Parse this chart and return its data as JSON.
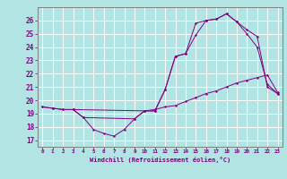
{
  "title": "",
  "xlabel": "Windchill (Refroidissement éolien,°C)",
  "background_color": "#b2e4e4",
  "grid_color": "#ffffff",
  "line_color": "#800080",
  "spine_color": "#808080",
  "xlim": [
    -0.5,
    23.5
  ],
  "ylim": [
    16.5,
    27.0
  ],
  "xticks": [
    0,
    1,
    2,
    3,
    4,
    5,
    6,
    7,
    8,
    9,
    10,
    11,
    12,
    13,
    14,
    15,
    16,
    17,
    18,
    19,
    20,
    21,
    22,
    23
  ],
  "yticks": [
    17,
    18,
    19,
    20,
    21,
    22,
    23,
    24,
    25,
    26
  ],
  "series1_x": [
    0,
    1,
    2,
    3,
    4,
    5,
    6,
    7,
    8,
    9,
    10,
    11,
    12,
    13,
    14,
    15,
    16,
    17,
    18,
    19,
    20,
    21,
    22,
    23
  ],
  "series1_y": [
    19.5,
    19.4,
    19.3,
    19.3,
    18.7,
    17.8,
    17.5,
    17.3,
    17.8,
    18.6,
    19.2,
    19.2,
    20.8,
    23.3,
    23.5,
    24.9,
    26.0,
    26.1,
    26.5,
    25.9,
    25.0,
    24.0,
    21.2,
    20.5
  ],
  "series2_x": [
    0,
    1,
    2,
    3,
    10,
    11,
    12,
    13,
    14,
    15,
    16,
    17,
    18,
    19,
    20,
    21,
    22,
    23
  ],
  "series2_y": [
    19.5,
    19.4,
    19.3,
    19.3,
    19.2,
    19.3,
    19.5,
    19.6,
    19.9,
    20.2,
    20.5,
    20.7,
    21.0,
    21.3,
    21.5,
    21.7,
    21.9,
    20.6
  ],
  "series3_x": [
    3,
    4,
    9,
    10,
    11,
    12,
    13,
    14,
    15,
    16,
    17,
    18,
    19,
    20,
    21,
    22,
    23
  ],
  "series3_y": [
    19.3,
    18.7,
    18.6,
    19.2,
    19.2,
    20.8,
    23.3,
    23.5,
    25.8,
    26.0,
    26.1,
    26.5,
    25.9,
    25.3,
    24.8,
    21.0,
    20.5
  ]
}
